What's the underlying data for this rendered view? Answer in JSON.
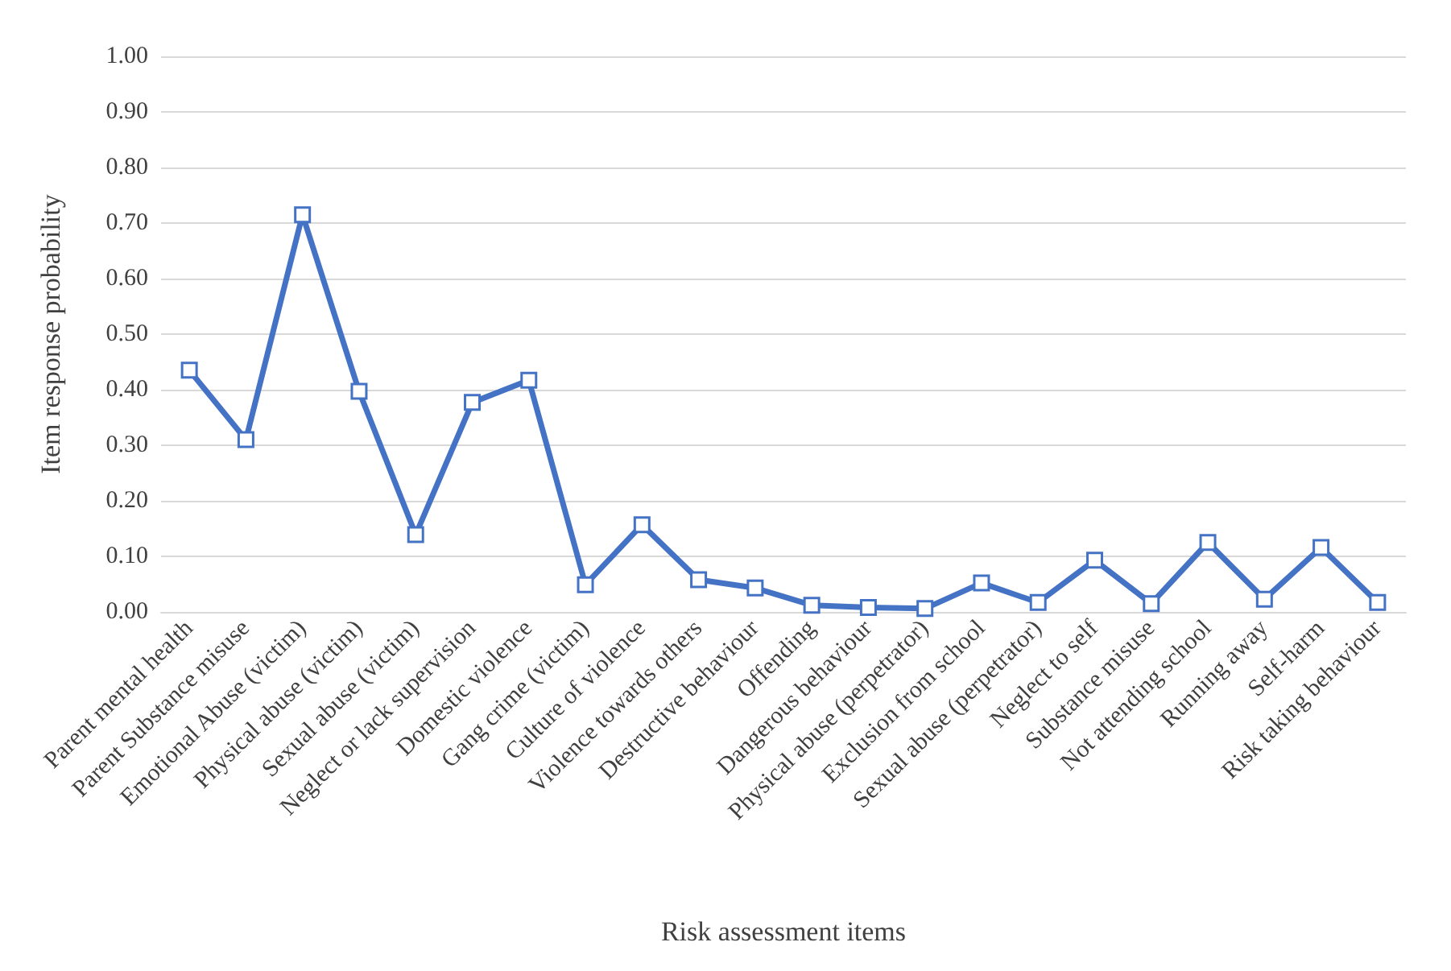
{
  "chart_data": {
    "type": "line",
    "xlabel": "Risk assessment items",
    "ylabel": "Item response probability",
    "categories": [
      "Parent mental health",
      "Parent Substance misuse",
      "Emotional Abuse (victim)",
      "Physical abuse (victim)",
      "Sexual abuse (victim)",
      "Neglect or lack supervision",
      "Domestic violence",
      "Gang crime (victim)",
      "Culture of violence",
      "Violence towards others",
      "Destructive behaviour",
      "Offending",
      "Dangerous behaviour",
      "Physical abuse (perpetrator)",
      "Exclusion from school",
      "Sexual abuse (perpetrator)",
      "Neglect to self",
      "Substance misuse",
      "Not attending school",
      "Running away",
      "Self-harm",
      "Risk taking behaviour"
    ],
    "series": [
      {
        "color": "#4472c4",
        "values": [
          0.435,
          0.31,
          0.715,
          0.397,
          0.139,
          0.377,
          0.417,
          0.049,
          0.157,
          0.058,
          0.043,
          0.012,
          0.008,
          0.006,
          0.052,
          0.017,
          0.093,
          0.015,
          0.125,
          0.023,
          0.116,
          0.017
        ]
      }
    ],
    "ylim": [
      0,
      1
    ],
    "yticks": [
      {
        "value": 0,
        "label": "0.00"
      },
      {
        "value": 0.1,
        "label": "0.10"
      },
      {
        "value": 0.2,
        "label": "0.20"
      },
      {
        "value": 0.3,
        "label": "0.30"
      },
      {
        "value": 0.4,
        "label": "0.40"
      },
      {
        "value": 0.5,
        "label": "0.50"
      },
      {
        "value": 0.6,
        "label": "0.60"
      },
      {
        "value": 0.7,
        "label": "0.70"
      },
      {
        "value": 0.8,
        "label": "0.80"
      },
      {
        "value": 0.9,
        "label": "0.90"
      },
      {
        "value": 1,
        "label": "1.00"
      }
    ],
    "grid": "y",
    "marker": "square",
    "line_style": "solid"
  }
}
